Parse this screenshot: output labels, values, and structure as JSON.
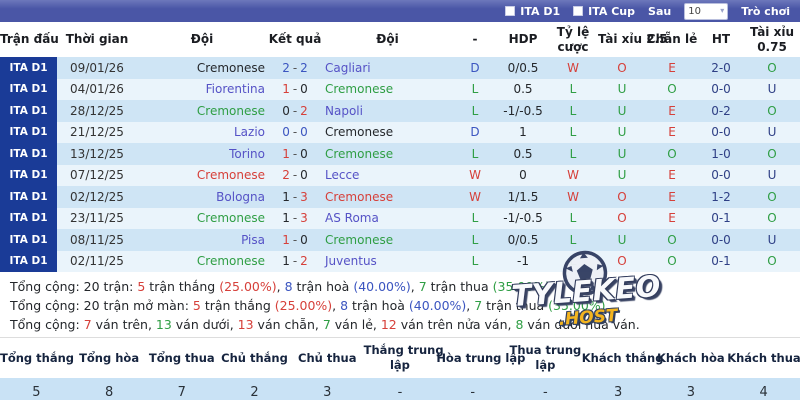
{
  "colors": {
    "win-red": "#d6403a",
    "loss-green": "#2f9e44",
    "draw-blue": "#3b55c0",
    "team-link": "#5552c6",
    "text-dark": "#24272b",
    "navy": "#2e3f85",
    "topbar-bg": "#4a56a6",
    "topbar-hi": "#6d78bb",
    "badge-bg": "#1a3b97",
    "row-odd": "#cfe5f5",
    "row-even": "#eaf4fb",
    "footer-row-bg": "#c9e2f5",
    "gold": "#f3b41f"
  },
  "topbar": {
    "filters": [
      {
        "label": "ITA D1",
        "checked": false
      },
      {
        "label": "ITA Cup",
        "checked": false
      }
    ],
    "after_label": "Sau",
    "count_select": "10",
    "game_link": "Trò chơi"
  },
  "match_table": {
    "headers": [
      {
        "key": "match",
        "lines": [
          "Trận đấu"
        ]
      },
      {
        "key": "time",
        "lines": [
          "Thời gian"
        ]
      },
      {
        "key": "home-team",
        "lines": [
          "Đội"
        ]
      },
      {
        "key": "result",
        "lines": [
          "Kết quả"
        ]
      },
      {
        "key": "away-team",
        "lines": [
          "Đội"
        ]
      },
      {
        "key": "dash",
        "lines": [
          "-"
        ]
      },
      {
        "key": "hdp",
        "lines": [
          "HDP"
        ]
      },
      {
        "key": "odds",
        "lines": [
          "Tỷ lệ",
          "cược"
        ]
      },
      {
        "key": "over-under-2-5",
        "lines": [
          "Tài xỉu 2.5"
        ]
      },
      {
        "key": "odd-even",
        "lines": [
          "Chẵn lẻ"
        ]
      },
      {
        "key": "half-time",
        "lines": [
          "HT"
        ]
      },
      {
        "key": "over-under-0-75",
        "lines": [
          "Tài xỉu",
          "0.75"
        ]
      }
    ],
    "rows": [
      {
        "league": "ITA D1",
        "date": "09/01/26",
        "home": "Cremonese",
        "home_c": "dark",
        "s1": "2",
        "s1_c": "draw",
        "s2": "2",
        "s2_c": "draw",
        "away": "Cagliari",
        "away_c": "link",
        "result": "D",
        "result_c": "draw",
        "hdp": "0/0.5",
        "odds": "W",
        "odds_c": "win",
        "ou25": "O",
        "ou25_c": "win",
        "oe": "E",
        "oe_c": "win",
        "ht": "2-0",
        "ou075": "O",
        "ou075_c": "loss"
      },
      {
        "league": "ITA D1",
        "date": "04/01/26",
        "home": "Fiorentina",
        "home_c": "link",
        "s1": "1",
        "s1_c": "win",
        "s2": "0",
        "s2_c": "dark",
        "away": "Cremonese",
        "away_c": "loss",
        "result": "L",
        "result_c": "loss",
        "hdp": "0.5",
        "odds": "L",
        "odds_c": "loss",
        "ou25": "U",
        "ou25_c": "loss",
        "oe": "O",
        "oe_c": "loss",
        "ht": "0-0",
        "ou075": "U",
        "ou075_c": "navy"
      },
      {
        "league": "ITA D1",
        "date": "28/12/25",
        "home": "Cremonese",
        "home_c": "loss",
        "s1": "0",
        "s1_c": "dark",
        "s2": "2",
        "s2_c": "win",
        "away": "Napoli",
        "away_c": "link",
        "result": "L",
        "result_c": "loss",
        "hdp": "-1/-0.5",
        "odds": "L",
        "odds_c": "loss",
        "ou25": "U",
        "ou25_c": "loss",
        "oe": "E",
        "oe_c": "win",
        "ht": "0-2",
        "ou075": "O",
        "ou075_c": "loss"
      },
      {
        "league": "ITA D1",
        "date": "21/12/25",
        "home": "Lazio",
        "home_c": "link",
        "s1": "0",
        "s1_c": "draw",
        "s2": "0",
        "s2_c": "draw",
        "away": "Cremonese",
        "away_c": "dark",
        "result": "D",
        "result_c": "draw",
        "hdp": "1",
        "odds": "L",
        "odds_c": "loss",
        "ou25": "U",
        "ou25_c": "loss",
        "oe": "E",
        "oe_c": "win",
        "ht": "0-0",
        "ou075": "U",
        "ou075_c": "navy"
      },
      {
        "league": "ITA D1",
        "date": "13/12/25",
        "home": "Torino",
        "home_c": "link",
        "s1": "1",
        "s1_c": "win",
        "s2": "0",
        "s2_c": "dark",
        "away": "Cremonese",
        "away_c": "loss",
        "result": "L",
        "result_c": "loss",
        "hdp": "0.5",
        "odds": "L",
        "odds_c": "loss",
        "ou25": "U",
        "ou25_c": "loss",
        "oe": "O",
        "oe_c": "loss",
        "ht": "1-0",
        "ou075": "O",
        "ou075_c": "loss"
      },
      {
        "league": "ITA D1",
        "date": "07/12/25",
        "home": "Cremonese",
        "home_c": "win",
        "s1": "2",
        "s1_c": "win",
        "s2": "0",
        "s2_c": "dark",
        "away": "Lecce",
        "away_c": "link",
        "result": "W",
        "result_c": "win",
        "hdp": "0",
        "odds": "W",
        "odds_c": "win",
        "ou25": "U",
        "ou25_c": "loss",
        "oe": "E",
        "oe_c": "win",
        "ht": "0-0",
        "ou075": "U",
        "ou075_c": "navy"
      },
      {
        "league": "ITA D1",
        "date": "02/12/25",
        "home": "Bologna",
        "home_c": "link",
        "s1": "1",
        "s1_c": "dark",
        "s2": "3",
        "s2_c": "win",
        "away": "Cremonese",
        "away_c": "win",
        "result": "W",
        "result_c": "win",
        "hdp": "1/1.5",
        "odds": "W",
        "odds_c": "win",
        "ou25": "O",
        "ou25_c": "win",
        "oe": "E",
        "oe_c": "win",
        "ht": "1-2",
        "ou075": "O",
        "ou075_c": "loss"
      },
      {
        "league": "ITA D1",
        "date": "23/11/25",
        "home": "Cremonese",
        "home_c": "loss",
        "s1": "1",
        "s1_c": "dark",
        "s2": "3",
        "s2_c": "win",
        "away": "AS Roma",
        "away_c": "link",
        "result": "L",
        "result_c": "loss",
        "hdp": "-1/-0.5",
        "odds": "L",
        "odds_c": "loss",
        "ou25": "O",
        "ou25_c": "win",
        "oe": "E",
        "oe_c": "win",
        "ht": "0-1",
        "ou075": "O",
        "ou075_c": "loss"
      },
      {
        "league": "ITA D1",
        "date": "08/11/25",
        "home": "Pisa",
        "home_c": "link",
        "s1": "1",
        "s1_c": "win",
        "s2": "0",
        "s2_c": "dark",
        "away": "Cremonese",
        "away_c": "loss",
        "result": "L",
        "result_c": "loss",
        "hdp": "0/0.5",
        "odds": "L",
        "odds_c": "loss",
        "ou25": "U",
        "ou25_c": "loss",
        "oe": "O",
        "oe_c": "loss",
        "ht": "0-0",
        "ou075": "U",
        "ou075_c": "navy"
      },
      {
        "league": "ITA D1",
        "date": "02/11/25",
        "home": "Cremonese",
        "home_c": "loss",
        "s1": "1",
        "s1_c": "dark",
        "s2": "2",
        "s2_c": "win",
        "away": "Juventus",
        "away_c": "link",
        "result": "L",
        "result_c": "loss",
        "hdp": "-1",
        "odds": "L",
        "odds_c": "loss",
        "ou25": "O",
        "ou25_c": "win",
        "oe": "O",
        "oe_c": "loss",
        "ht": "0-1",
        "ou075": "O",
        "ou075_c": "loss"
      }
    ]
  },
  "summary_lines": [
    [
      {
        "t": "Tổng cộng: 20 trận: ",
        "c": "dark"
      },
      {
        "t": "5",
        "c": "win"
      },
      {
        "t": " trận thắng ",
        "c": "dark"
      },
      {
        "t": "(25.00%)",
        "c": "win"
      },
      {
        "t": ", ",
        "c": "dark"
      },
      {
        "t": "8",
        "c": "draw"
      },
      {
        "t": " trận hoà ",
        "c": "dark"
      },
      {
        "t": "(40.00%)",
        "c": "draw"
      },
      {
        "t": ", ",
        "c": "dark"
      },
      {
        "t": "7",
        "c": "loss"
      },
      {
        "t": " trận thua ",
        "c": "dark"
      },
      {
        "t": "(35.00%)",
        "c": "loss"
      },
      {
        "t": ".",
        "c": "dark"
      }
    ],
    [
      {
        "t": "Tổng cộng: 20 trận mở màn: ",
        "c": "dark"
      },
      {
        "t": "5",
        "c": "win"
      },
      {
        "t": " trận thắng ",
        "c": "dark"
      },
      {
        "t": "(25.00%)",
        "c": "win"
      },
      {
        "t": ", ",
        "c": "dark"
      },
      {
        "t": "8",
        "c": "draw"
      },
      {
        "t": " trận hoà ",
        "c": "dark"
      },
      {
        "t": "(40.00%)",
        "c": "draw"
      },
      {
        "t": ", ",
        "c": "dark"
      },
      {
        "t": "7",
        "c": "loss"
      },
      {
        "t": " trận thua ",
        "c": "dark"
      },
      {
        "t": "(35.00%)",
        "c": "loss"
      },
      {
        "t": ".",
        "c": "dark"
      }
    ],
    [
      {
        "t": "Tổng cộng: ",
        "c": "dark"
      },
      {
        "t": "7",
        "c": "win"
      },
      {
        "t": " ván trên, ",
        "c": "dark"
      },
      {
        "t": "13",
        "c": "loss"
      },
      {
        "t": " ván dưới, ",
        "c": "dark"
      },
      {
        "t": "13",
        "c": "win"
      },
      {
        "t": " ván chẵn, ",
        "c": "dark"
      },
      {
        "t": "7",
        "c": "loss"
      },
      {
        "t": " ván lẻ, ",
        "c": "dark"
      },
      {
        "t": "12",
        "c": "win"
      },
      {
        "t": " ván trên nửa ván, ",
        "c": "dark"
      },
      {
        "t": "8",
        "c": "loss"
      },
      {
        "t": " ván dưới nửa ván.",
        "c": "dark"
      }
    ]
  ],
  "result_summary": {
    "headers": [
      {
        "lines": [
          "Tổng thắng"
        ]
      },
      {
        "lines": [
          "Tổng hòa"
        ]
      },
      {
        "lines": [
          "Tổng thua"
        ]
      },
      {
        "lines": [
          "Chủ thắng"
        ]
      },
      {
        "lines": [
          "Chủ thua"
        ]
      },
      {
        "lines": [
          "Thắng trung",
          "lập"
        ]
      },
      {
        "lines": [
          "Hòa trung lập"
        ]
      },
      {
        "lines": [
          "Thua trung",
          "lập"
        ]
      },
      {
        "lines": [
          "Khách thắng"
        ]
      },
      {
        "lines": [
          "Khách hòa"
        ]
      },
      {
        "lines": [
          "Khách thua"
        ]
      }
    ],
    "values": [
      "5",
      "8",
      "7",
      "2",
      "3",
      "-",
      "-",
      "-",
      "3",
      "3",
      "4"
    ]
  },
  "watermark": {
    "brand": "TYLEKEO",
    "tld": ".HOST"
  }
}
